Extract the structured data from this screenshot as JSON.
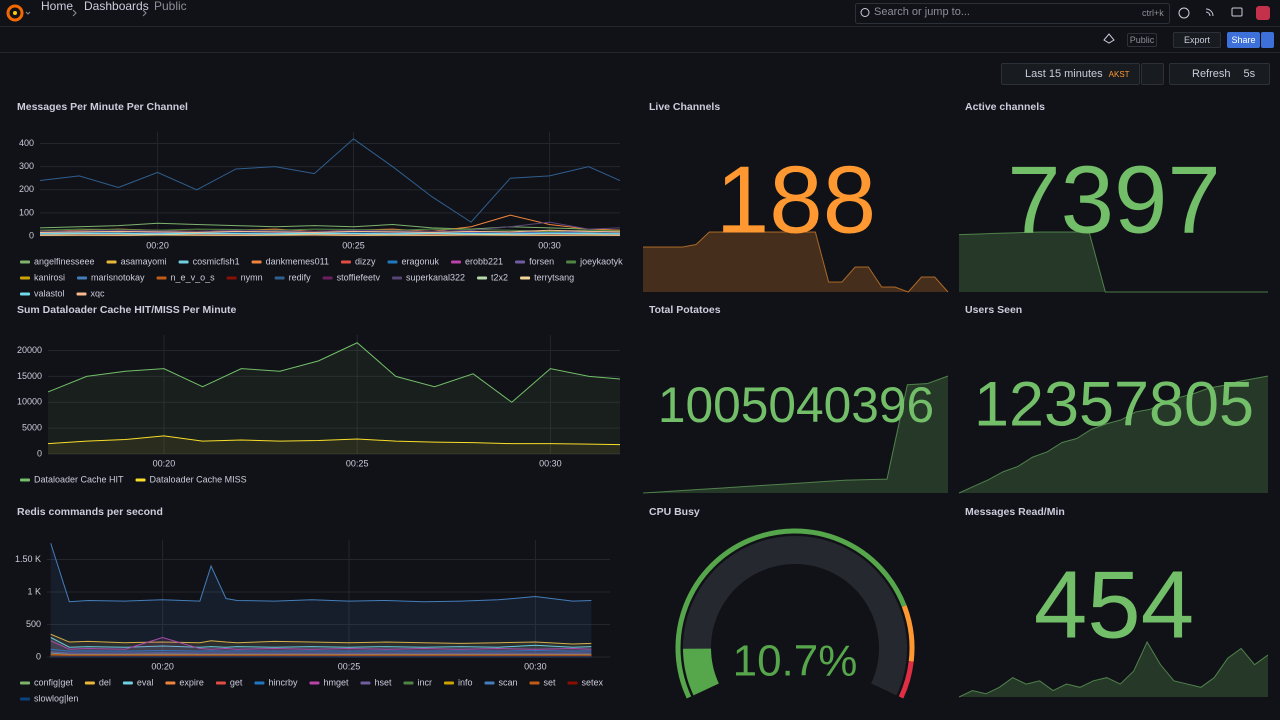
{
  "nav": {
    "breadcrumbs": [
      "Home",
      "Dashboards",
      "Public"
    ],
    "search": "Search or jump to...",
    "shortcut": "ctrl+k"
  },
  "toolbar": {
    "badge": "Public",
    "export": "Export",
    "share": "Share"
  },
  "time_controls": {
    "range": "Last 15 minutes",
    "timezone": "AKST",
    "refresh": "Refresh",
    "interval": "5s"
  },
  "chart_data": [
    {
      "type": "line",
      "title": "Messages Per Minute Per Channel",
      "fill_opacity": 0,
      "grid": true,
      "x": [
        17,
        18,
        19,
        20,
        21,
        22,
        23,
        24,
        25,
        26,
        27,
        28,
        29,
        30,
        31,
        31.8
      ],
      "xlim": [
        17,
        31.8
      ],
      "xticks": [
        {
          "value": 20,
          "label": "00:20"
        },
        {
          "value": 25,
          "label": "00:25"
        },
        {
          "value": 30,
          "label": "00:30"
        }
      ],
      "ylim": [
        0,
        450
      ],
      "yticks": [
        0,
        100,
        200,
        300,
        400
      ],
      "series": [
        {
          "name": "angelfinesseee",
          "color": "#7eb26d",
          "values": [
            35,
            40,
            45,
            55,
            50,
            45,
            40,
            45,
            40,
            50,
            35,
            30,
            40,
            35,
            30,
            25
          ]
        },
        {
          "name": "asamayomi",
          "color": "#eab839",
          "values": [
            10,
            12,
            15,
            10,
            8,
            12,
            10,
            15,
            12,
            10,
            8,
            10,
            12,
            20,
            15,
            12
          ]
        },
        {
          "name": "cosmicfish1",
          "color": "#6ed0e0",
          "values": [
            5,
            8,
            6,
            10,
            8,
            6,
            5,
            8,
            10,
            6,
            5,
            8,
            6,
            5,
            8,
            6
          ]
        },
        {
          "name": "dankmemes011",
          "color": "#ef843c",
          "values": [
            20,
            25,
            30,
            25,
            20,
            25,
            30,
            20,
            25,
            30,
            20,
            40,
            90,
            50,
            30,
            25
          ]
        },
        {
          "name": "dizzy",
          "color": "#e24d42",
          "values": [
            8,
            10,
            12,
            10,
            8,
            10,
            12,
            10,
            8,
            12,
            10,
            8,
            10,
            12,
            10,
            8
          ]
        },
        {
          "name": "eragonuk",
          "color": "#1f78c1",
          "values": [
            3,
            5,
            4,
            6,
            5,
            4,
            5,
            6,
            4,
            5,
            6,
            4,
            5,
            6,
            5,
            4
          ]
        },
        {
          "name": "erobb221",
          "color": "#ba43a9",
          "values": [
            10,
            12,
            10,
            15,
            12,
            10,
            12,
            15,
            10,
            12,
            10,
            15,
            12,
            10,
            12,
            10
          ]
        },
        {
          "name": "forsen",
          "color": "#705da0",
          "values": [
            15,
            18,
            20,
            18,
            15,
            20,
            18,
            15,
            20,
            18,
            15,
            20,
            18,
            15,
            20,
            18
          ]
        },
        {
          "name": "joeykaotyk",
          "color": "#508642",
          "values": [
            25,
            30,
            28,
            25,
            30,
            28,
            25,
            30,
            28,
            25,
            30,
            28,
            25,
            20,
            25,
            22
          ]
        },
        {
          "name": "kanirosi",
          "color": "#cca300",
          "values": [
            5,
            6,
            5,
            7,
            6,
            5,
            6,
            7,
            5,
            6,
            5,
            7,
            6,
            5,
            6,
            5
          ]
        },
        {
          "name": "marisnotokay",
          "color": "#447ebc",
          "values": [
            12,
            15,
            14,
            12,
            15,
            14,
            12,
            15,
            14,
            12,
            15,
            14,
            12,
            15,
            14,
            12
          ]
        },
        {
          "name": "n_e_v_o_s",
          "color": "#c15c17",
          "values": [
            2,
            3,
            2,
            4,
            3,
            2,
            3,
            4,
            2,
            3,
            2,
            4,
            3,
            2,
            3,
            2
          ]
        },
        {
          "name": "nymn",
          "color": "#890f02",
          "values": [
            6,
            8,
            7,
            6,
            8,
            7,
            6,
            8,
            7,
            6,
            8,
            7,
            6,
            8,
            7,
            6
          ]
        },
        {
          "name": "redify",
          "color": "#2f5f8f",
          "values": [
            240,
            260,
            210,
            275,
            200,
            290,
            300,
            270,
            420,
            300,
            170,
            60,
            250,
            260,
            300,
            240
          ]
        },
        {
          "name": "stoffiefeetv",
          "color": "#6d1f62",
          "values": [
            4,
            5,
            4,
            6,
            5,
            4,
            5,
            6,
            4,
            5,
            4,
            6,
            5,
            4,
            5,
            4
          ]
        },
        {
          "name": "superkanal322",
          "color": "#584477",
          "values": [
            20,
            22,
            25,
            22,
            20,
            25,
            22,
            20,
            25,
            22,
            20,
            25,
            40,
            60,
            30,
            35
          ]
        },
        {
          "name": "t2x2",
          "color": "#b7dbab",
          "values": [
            8,
            10,
            9,
            8,
            10,
            9,
            8,
            10,
            9,
            8,
            10,
            9,
            8,
            10,
            9,
            8
          ]
        },
        {
          "name": "terrytsang",
          "color": "#f4d598",
          "values": [
            3,
            4,
            3,
            5,
            4,
            3,
            4,
            5,
            3,
            4,
            3,
            5,
            4,
            3,
            4,
            3
          ]
        },
        {
          "name": "valastol",
          "color": "#70dbed",
          "values": [
            10,
            12,
            11,
            10,
            12,
            11,
            10,
            12,
            11,
            10,
            12,
            11,
            10,
            12,
            11,
            10
          ]
        },
        {
          "name": "xqc",
          "color": "#f9ba8f",
          "values": [
            15,
            18,
            20,
            18,
            15,
            20,
            18,
            15,
            20,
            18,
            15,
            20,
            18,
            25,
            20,
            18
          ]
        }
      ]
    },
    {
      "type": "stat",
      "title": "Live Channels",
      "value": 188,
      "color": "#ff9830",
      "sparkline": [
        176,
        176,
        176,
        176,
        178,
        188,
        188,
        188,
        188,
        188,
        188,
        188,
        188,
        188,
        148,
        148,
        160,
        160,
        144,
        144,
        140,
        152,
        152,
        140
      ]
    },
    {
      "type": "stat",
      "title": "Active channels",
      "value": 7397,
      "color": "#73bf69",
      "sparkline": [
        7300,
        7320,
        7340,
        7360,
        7380,
        7397,
        7397,
        7397,
        7397,
        5200,
        5200,
        5200,
        5200,
        5200,
        5200,
        5200,
        5200,
        5200,
        5200,
        5200
      ]
    },
    {
      "type": "line",
      "title": "Sum Dataloader Cache HIT/MISS Per Minute",
      "fill_opacity": 0.08,
      "grid": true,
      "x": [
        17,
        18,
        19,
        20,
        21,
        22,
        23,
        24,
        25,
        26,
        27,
        28,
        29,
        30,
        31,
        31.8
      ],
      "xlim": [
        17,
        31.8
      ],
      "xticks": [
        {
          "value": 20,
          "label": "00:20"
        },
        {
          "value": 25,
          "label": "00:25"
        },
        {
          "value": 30,
          "label": "00:30"
        }
      ],
      "ylim": [
        0,
        23000
      ],
      "yticks": [
        0,
        5000,
        10000,
        15000,
        20000
      ],
      "series": [
        {
          "name": "Dataloader Cache HIT",
          "color": "#73bf69",
          "values": [
            12000,
            15000,
            16000,
            16500,
            13000,
            16500,
            16000,
            18000,
            21500,
            15000,
            13000,
            15500,
            10000,
            16500,
            15000,
            14500
          ]
        },
        {
          "name": "Dataloader Cache MISS",
          "color": "#fade2a",
          "values": [
            2000,
            2500,
            2800,
            3500,
            2500,
            2700,
            2500,
            2600,
            2900,
            2500,
            2300,
            2200,
            2000,
            2000,
            1900,
            1800
          ]
        }
      ]
    },
    {
      "type": "stat",
      "title": "Total Potatoes",
      "value": 1005040396,
      "color": "#73bf69",
      "sparkline": [
        1004995000,
        1004995500,
        1004996000,
        1004996500,
        1004997000,
        1004997500,
        1004998000,
        1004998500,
        1004999000,
        1004999500,
        1005000000,
        1005000200,
        1005000400,
        1005037000,
        1005037500,
        1005040396
      ]
    },
    {
      "type": "stat",
      "title": "Users Seen",
      "value": 12357805,
      "color": "#73bf69",
      "sparkline": [
        12349000,
        12349500,
        12350000,
        12350600,
        12351000,
        12351700,
        12352100,
        12352800,
        12353100,
        12353800,
        12354200,
        12354500,
        12355100,
        12355300,
        12355900,
        12356200,
        12356500,
        12356900,
        12357100,
        12357400,
        12357600,
        12357805
      ]
    },
    {
      "type": "line",
      "title": "Redis commands per second",
      "fill_opacity": 0.12,
      "grid": true,
      "x": [
        17,
        17.5,
        18,
        19,
        20,
        21,
        21.3,
        21.7,
        22,
        23,
        24,
        25,
        26,
        27,
        28,
        29,
        30,
        31,
        31.5
      ],
      "xlim": [
        16.9,
        32
      ],
      "xticks": [
        {
          "value": 20,
          "label": "00:20"
        },
        {
          "value": 25,
          "label": "00:25"
        },
        {
          "value": 30,
          "label": "00:30"
        }
      ],
      "ylim": [
        0,
        1800
      ],
      "yticks": [
        0,
        500,
        {
          "value": 1000,
          "label": "1 K"
        },
        {
          "value": 1500,
          "label": "1.50 K"
        }
      ],
      "series": [
        {
          "name": "config|get",
          "color": "#7eb26d",
          "values": [
            60,
            40,
            40,
            40,
            45,
            40,
            40,
            40,
            40,
            40,
            40,
            40,
            40,
            40,
            40,
            40,
            40,
            40,
            40
          ]
        },
        {
          "name": "del",
          "color": "#eab839",
          "values": [
            350,
            230,
            240,
            220,
            230,
            220,
            250,
            230,
            220,
            240,
            230,
            220,
            230,
            220,
            210,
            220,
            230,
            200,
            210
          ]
        },
        {
          "name": "eval",
          "color": "#6ed0e0",
          "values": [
            300,
            150,
            160,
            150,
            170,
            150,
            160,
            150,
            160,
            150,
            160,
            150,
            160,
            150,
            160,
            150,
            180,
            150,
            160
          ]
        },
        {
          "name": "expire",
          "color": "#ef843c",
          "values": [
            20,
            15,
            15,
            15,
            15,
            15,
            15,
            15,
            15,
            15,
            15,
            15,
            15,
            15,
            15,
            15,
            15,
            15,
            15
          ]
        },
        {
          "name": "get",
          "color": "#e24d42",
          "values": [
            10,
            8,
            8,
            8,
            8,
            8,
            8,
            8,
            8,
            8,
            8,
            8,
            8,
            8,
            8,
            8,
            8,
            8,
            8
          ]
        },
        {
          "name": "hincrby",
          "color": "#1f78c1",
          "values": [
            120,
            90,
            95,
            90,
            100,
            90,
            95,
            90,
            95,
            90,
            95,
            90,
            95,
            90,
            95,
            90,
            100,
            90,
            95
          ]
        },
        {
          "name": "hmget",
          "color": "#ba43a9",
          "values": [
            250,
            120,
            130,
            120,
            300,
            130,
            120,
            130,
            120,
            130,
            120,
            130,
            120,
            130,
            120,
            130,
            120,
            130,
            120
          ]
        },
        {
          "name": "hset",
          "color": "#705da0",
          "values": [
            80,
            60,
            60,
            60,
            65,
            60,
            60,
            60,
            60,
            60,
            60,
            60,
            60,
            60,
            60,
            60,
            60,
            60,
            60
          ]
        },
        {
          "name": "incr",
          "color": "#508642",
          "values": [
            30,
            25,
            25,
            25,
            25,
            25,
            25,
            25,
            25,
            25,
            25,
            25,
            25,
            25,
            25,
            25,
            25,
            25,
            25
          ]
        },
        {
          "name": "info",
          "color": "#cca300",
          "values": [
            5,
            5,
            5,
            5,
            5,
            5,
            5,
            5,
            5,
            5,
            5,
            5,
            5,
            5,
            5,
            5,
            5,
            5,
            5
          ]
        },
        {
          "name": "scan",
          "color": "#447ebc",
          "values": [
            1750,
            850,
            870,
            860,
            880,
            860,
            1400,
            900,
            870,
            860,
            880,
            860,
            870,
            850,
            860,
            880,
            930,
            860,
            870
          ]
        },
        {
          "name": "set",
          "color": "#c15c17",
          "values": [
            40,
            30,
            30,
            30,
            30,
            30,
            30,
            30,
            30,
            30,
            30,
            30,
            30,
            30,
            30,
            30,
            30,
            30,
            30
          ]
        },
        {
          "name": "setex",
          "color": "#890f02",
          "values": [
            15,
            12,
            12,
            12,
            12,
            12,
            12,
            12,
            12,
            12,
            12,
            12,
            12,
            12,
            12,
            12,
            12,
            12,
            12
          ]
        },
        {
          "name": "slowlog|len",
          "color": "#0a437c",
          "values": [
            2,
            2,
            2,
            2,
            2,
            2,
            2,
            2,
            2,
            2,
            2,
            2,
            2,
            2,
            2,
            2,
            2,
            2,
            2
          ]
        }
      ]
    },
    {
      "type": "gauge",
      "title": "CPU Busy",
      "value": 10.7,
      "value_label": "10.7%",
      "range": [
        0,
        100
      ],
      "color": "#56a64b",
      "thresholds": [
        {
          "value": 0,
          "color": "#56a64b"
        },
        {
          "value": 80,
          "color": "#ff9830"
        },
        {
          "value": 92,
          "color": "#e02f44"
        }
      ]
    },
    {
      "type": "stat",
      "title": "Messages Read/Min",
      "value": 454,
      "color": "#73bf69",
      "sparkline": [
        300,
        320,
        310,
        330,
        360,
        340,
        350,
        320,
        340,
        330,
        350,
        360,
        340,
        380,
        470,
        400,
        350,
        340,
        330,
        360,
        420,
        450,
        400,
        430
      ]
    }
  ]
}
